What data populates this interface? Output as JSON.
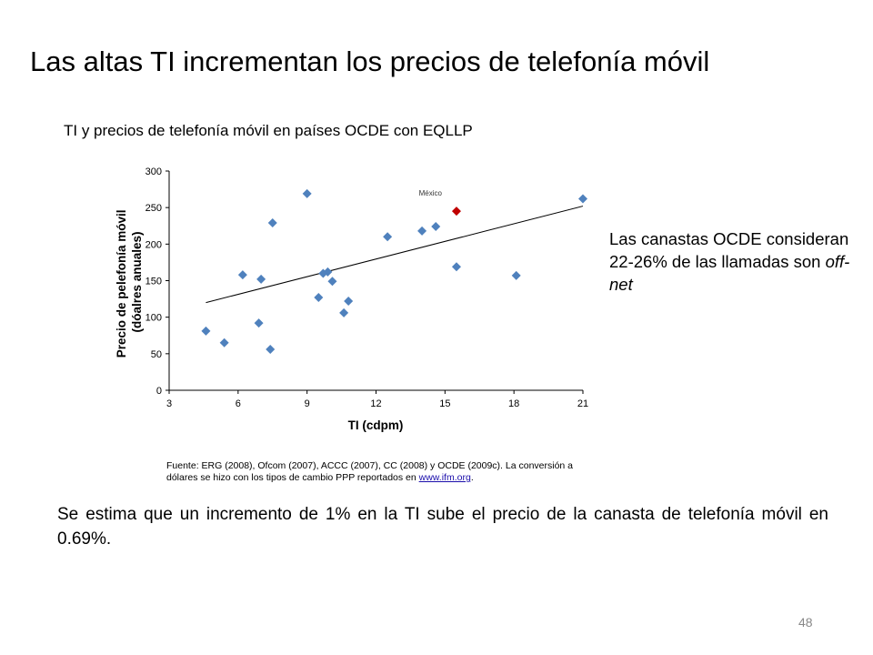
{
  "slide": {
    "title": "Las altas TI incrementan los precios de telefonía móvil",
    "page_number": "48"
  },
  "source": {
    "text": "Fuente: ERG (2008), Ofcom (2007), ACCC (2007), CC (2008) y OCDE (2009c). La conversión a dólares se hizo con los tipos de cambio PPP reportados en ",
    "link_text": "www.ifm.org",
    "suffix": "."
  },
  "side_note": {
    "text": "Las canastas OCDE consideran 22-26% de las llamadas son ",
    "emphasis": "off-net"
  },
  "bottom_note": "Se estima que un incremento de 1% en la TI sube el precio de la canasta de telefonía móvil en 0.69%.",
  "colors": {
    "points": "#4f81bd",
    "highlight": "#c00000",
    "trendline": "#000000",
    "link": "#1a0dab"
  },
  "chart_data": {
    "type": "scatter",
    "title": "TI y precios de telefonía móvil en países OCDE con EQLLP",
    "xlabel": "TI (cdpm)",
    "ylabel": "Precio de pelefonía móvil (dóalres anuales)",
    "xlim": [
      3,
      21
    ],
    "ylim": [
      0,
      300
    ],
    "xticks": [
      3,
      6,
      9,
      12,
      15,
      18,
      21
    ],
    "yticks": [
      0,
      50,
      100,
      150,
      200,
      250,
      300
    ],
    "grid": false,
    "series": [
      {
        "points": [
          {
            "x": 4.6,
            "y": 81
          },
          {
            "x": 5.4,
            "y": 65
          },
          {
            "x": 6.2,
            "y": 158
          },
          {
            "x": 6.9,
            "y": 92
          },
          {
            "x": 7.0,
            "y": 152
          },
          {
            "x": 7.4,
            "y": 56
          },
          {
            "x": 7.5,
            "y": 229
          },
          {
            "x": 9.0,
            "y": 269
          },
          {
            "x": 9.5,
            "y": 127
          },
          {
            "x": 9.7,
            "y": 160
          },
          {
            "x": 9.9,
            "y": 162
          },
          {
            "x": 10.1,
            "y": 149
          },
          {
            "x": 10.6,
            "y": 106
          },
          {
            "x": 10.8,
            "y": 122
          },
          {
            "x": 12.5,
            "y": 210
          },
          {
            "x": 14.0,
            "y": 218
          },
          {
            "x": 14.6,
            "y": 224
          },
          {
            "x": 15.5,
            "y": 169
          },
          {
            "x": 18.1,
            "y": 157
          },
          {
            "x": 21.0,
            "y": 262
          }
        ]
      }
    ],
    "highlight": {
      "label": "México",
      "x": 15.5,
      "y": 245
    },
    "trendline": {
      "x": [
        4.6,
        21.0
      ],
      "y": [
        120,
        252
      ]
    }
  }
}
